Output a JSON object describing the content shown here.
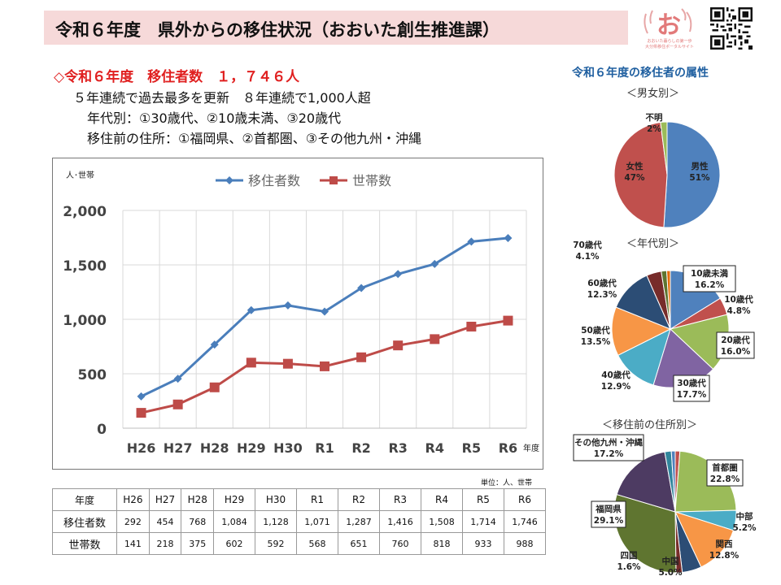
{
  "header": {
    "title": "令和６年度　県外からの移住状況（おおいた創生推進課）",
    "logo_glyph": "お",
    "logo_caption_1": "おおいた暮らしの第一歩",
    "logo_caption_2": "大分県移住ポータルサイト"
  },
  "summary": {
    "headline": "◇令和６年度　移住者数　１，７４６人",
    "line1": "５年連続で過去最多を更新　８年連続で1,000人超",
    "line2": "年代別：①30歳代、②10歳未満、③20歳代",
    "line3": "移住前の住所：①福岡県、②首都圏、③その他九州・沖縄"
  },
  "chart_data": [
    {
      "type": "line",
      "ylabel": "人･世帯",
      "xlabel": "年度",
      "categories": [
        "H26",
        "H27",
        "H28",
        "H29",
        "H30",
        "R1",
        "R2",
        "R3",
        "R4",
        "R5",
        "R6"
      ],
      "ylim": [
        0,
        2000
      ],
      "yticks": [
        "0",
        "500",
        "1,000",
        "1,500",
        "2,000"
      ],
      "grid": true,
      "legend_position": "top",
      "series": [
        {
          "name": "移住者数",
          "color": "#4a7ebb",
          "marker": "diamond",
          "values": [
            292,
            454,
            768,
            1084,
            1128,
            1071,
            1287,
            1416,
            1508,
            1714,
            1746
          ]
        },
        {
          "name": "世帯数",
          "color": "#be4b48",
          "marker": "square",
          "values": [
            141,
            218,
            375,
            602,
            592,
            568,
            651,
            760,
            818,
            933,
            988
          ]
        }
      ]
    },
    {
      "type": "pie",
      "title": "＜男女別＞",
      "slices": [
        {
          "label": "男性",
          "value": 51,
          "text": "51%",
          "color": "#4f81bd"
        },
        {
          "label": "女性",
          "value": 47,
          "text": "47%",
          "color": "#c0504d"
        },
        {
          "label": "不明",
          "value": 2,
          "text": "2%",
          "color": "#9bbb59"
        }
      ]
    },
    {
      "type": "pie",
      "title": "＜年代別＞",
      "slices": [
        {
          "label": "10歳未満",
          "value": 16.2,
          "text": "16.2%",
          "color": "#4f81bd"
        },
        {
          "label": "10歳代",
          "value": 4.8,
          "text": "4.8%",
          "color": "#c0504d"
        },
        {
          "label": "20歳代",
          "value": 16.0,
          "text": "16.0%",
          "color": "#9bbb59"
        },
        {
          "label": "30歳代",
          "value": 17.7,
          "text": "17.7%",
          "color": "#8064a2"
        },
        {
          "label": "40歳代",
          "value": 12.9,
          "text": "12.9%",
          "color": "#4bacc6"
        },
        {
          "label": "50歳代",
          "value": 13.5,
          "text": "13.5%",
          "color": "#f79646"
        },
        {
          "label": "60歳代",
          "value": 12.3,
          "text": "12.3%",
          "color": "#2c4d75"
        },
        {
          "label": "70歳代",
          "value": 4.1,
          "text": "4.1%",
          "color": "#772c2a"
        },
        {
          "label": "",
          "value": 1.5,
          "text": "",
          "color": "#5f7530"
        },
        {
          "label": "",
          "value": 1.0,
          "text": "",
          "color": "#e46c0a"
        }
      ]
    },
    {
      "type": "pie",
      "title": "＜移住前の住所別＞",
      "slices": [
        {
          "label": "",
          "value": 1.2,
          "text": "",
          "color": "#c0504d"
        },
        {
          "label": "首都圏",
          "value": 22.8,
          "text": "22.8%",
          "color": "#9bbb59"
        },
        {
          "label": "中部",
          "value": 5.2,
          "text": "5.2%",
          "color": "#4bacc6"
        },
        {
          "label": "関西",
          "value": 12.8,
          "text": "12.8%",
          "color": "#f79646"
        },
        {
          "label": "中国",
          "value": 5.0,
          "text": "5.0%",
          "color": "#2c4d75"
        },
        {
          "label": "四国",
          "value": 1.6,
          "text": "1.6%",
          "color": "#772c2a"
        },
        {
          "label": "福岡県",
          "value": 29.1,
          "text": "29.1%",
          "color": "#5f7530"
        },
        {
          "label": "その他九州・沖縄",
          "value": 17.2,
          "text": "17.2%",
          "color": "#4d3b62"
        },
        {
          "label": "",
          "value": 1.7,
          "text": "",
          "color": "#31859c"
        },
        {
          "label": "",
          "value": 1.0,
          "text": "",
          "color": "#4f81bd"
        }
      ]
    }
  ],
  "chart_labels": {
    "y_unit": "人･世帯",
    "x_unit": "年度",
    "unit_note": "単位：人、世帯"
  },
  "table": {
    "header_label": "年度",
    "years": [
      "H26",
      "H27",
      "H28",
      "H29",
      "H30",
      "R1",
      "R2",
      "R3",
      "R4",
      "R5",
      "R6"
    ],
    "rows": [
      {
        "label": "移住者数",
        "values": [
          "292",
          "454",
          "768",
          "1,084",
          "1,128",
          "1,071",
          "1,287",
          "1,416",
          "1,508",
          "1,714",
          "1,746"
        ]
      },
      {
        "label": "世帯数",
        "values": [
          "141",
          "218",
          "375",
          "602",
          "592",
          "568",
          "651",
          "760",
          "818",
          "933",
          "988"
        ]
      }
    ]
  },
  "pies": {
    "title": "令和６年度の移住者の属性",
    "gender_title": "＜男女別＞",
    "age_title": "＜年代別＞",
    "origin_title": "＜移住前の住所別＞"
  }
}
